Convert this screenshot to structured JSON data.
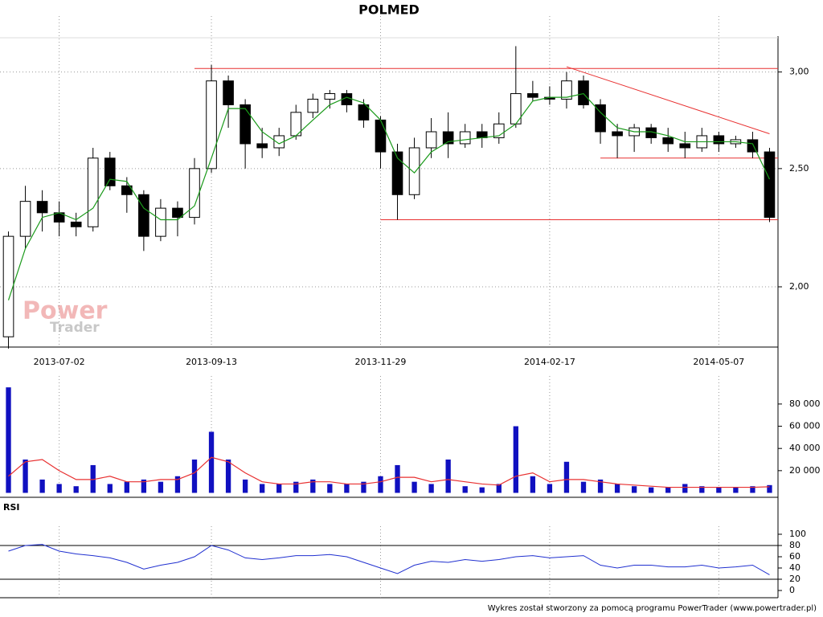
{
  "chart_data": [
    {
      "type": "candlestick",
      "title": "POLMED",
      "log": true,
      "categories": [
        null,
        null,
        null,
        "2013-07-02",
        null,
        null,
        null,
        null,
        null,
        null,
        null,
        null,
        "2013-09-13",
        null,
        null,
        null,
        null,
        null,
        null,
        null,
        null,
        null,
        "2013-11-29",
        null,
        null,
        null,
        null,
        null,
        null,
        null,
        null,
        null,
        "2014-02-17",
        null,
        null,
        null,
        null,
        null,
        null,
        null,
        null,
        null,
        "2014-05-07",
        null,
        null,
        null
      ],
      "open": [
        1.82,
        2.2,
        2.35,
        2.3,
        2.26,
        2.24,
        2.55,
        2.42,
        2.38,
        2.2,
        2.32,
        2.28,
        2.5,
        2.95,
        2.82,
        2.62,
        2.6,
        2.66,
        2.78,
        2.85,
        2.88,
        2.82,
        2.74,
        2.58,
        2.38,
        2.6,
        2.68,
        2.62,
        2.68,
        2.65,
        2.72,
        2.88,
        2.86,
        2.85,
        2.95,
        2.82,
        2.68,
        2.66,
        2.7,
        2.65,
        2.62,
        2.6,
        2.66,
        2.62,
        2.64,
        2.58
      ],
      "high": [
        2.22,
        2.42,
        2.4,
        2.35,
        2.3,
        2.6,
        2.58,
        2.46,
        2.4,
        2.36,
        2.35,
        2.55,
        3.04,
        2.98,
        2.85,
        2.7,
        2.7,
        2.82,
        2.88,
        2.9,
        2.9,
        2.85,
        2.76,
        2.62,
        2.65,
        2.75,
        2.78,
        2.72,
        2.72,
        2.78,
        3.15,
        2.95,
        2.92,
        3.0,
        2.98,
        2.85,
        2.72,
        2.72,
        2.72,
        2.7,
        2.68,
        2.7,
        2.68,
        2.66,
        2.68,
        2.6
      ],
      "low": [
        1.78,
        2.15,
        2.22,
        2.2,
        2.2,
        2.22,
        2.4,
        2.3,
        2.14,
        2.18,
        2.2,
        2.25,
        2.48,
        2.7,
        2.5,
        2.55,
        2.56,
        2.64,
        2.75,
        2.8,
        2.78,
        2.7,
        2.5,
        2.27,
        2.36,
        2.55,
        2.55,
        2.6,
        2.6,
        2.62,
        2.7,
        2.84,
        2.82,
        2.8,
        2.8,
        2.62,
        2.55,
        2.58,
        2.62,
        2.58,
        2.55,
        2.58,
        2.58,
        2.6,
        2.55,
        2.26
      ],
      "close": [
        2.2,
        2.35,
        2.3,
        2.26,
        2.24,
        2.55,
        2.42,
        2.38,
        2.2,
        2.32,
        2.28,
        2.5,
        2.95,
        2.82,
        2.62,
        2.6,
        2.66,
        2.78,
        2.85,
        2.88,
        2.82,
        2.74,
        2.58,
        2.38,
        2.6,
        2.68,
        2.62,
        2.68,
        2.65,
        2.72,
        2.88,
        2.86,
        2.85,
        2.95,
        2.82,
        2.68,
        2.66,
        2.7,
        2.65,
        2.62,
        2.6,
        2.66,
        2.62,
        2.64,
        2.58,
        2.28
      ],
      "ma": {
        "color": "#1a9a1a",
        "values": [
          1.95,
          2.15,
          2.28,
          2.3,
          2.27,
          2.32,
          2.45,
          2.44,
          2.32,
          2.27,
          2.27,
          2.33,
          2.55,
          2.8,
          2.8,
          2.68,
          2.62,
          2.66,
          2.74,
          2.82,
          2.86,
          2.83,
          2.74,
          2.55,
          2.48,
          2.58,
          2.63,
          2.64,
          2.65,
          2.66,
          2.72,
          2.84,
          2.86,
          2.86,
          2.88,
          2.78,
          2.7,
          2.68,
          2.68,
          2.66,
          2.63,
          2.63,
          2.63,
          2.63,
          2.62,
          2.45
        ]
      },
      "levels": [
        {
          "value": 3.02,
          "start": 11
        },
        {
          "value": 2.55,
          "start": 35
        },
        {
          "value": 2.27,
          "start": 22
        }
      ],
      "trendline": {
        "from": [
          33,
          3.03
        ],
        "to": [
          45,
          2.67
        ]
      },
      "line_color": "#e83030",
      "ylim": [
        1.785,
        3.21
      ],
      "yticks": [
        {
          "value": 2,
          "label": "2,00"
        },
        {
          "value": 2.5,
          "label": "2,50"
        },
        {
          "value": 3,
          "label": "3,00"
        }
      ],
      "grid": true
    },
    {
      "type": "bar",
      "color": "#1010c0",
      "values": [
        95000,
        30000,
        12000,
        8000,
        6000,
        25000,
        8000,
        10000,
        12000,
        10000,
        15000,
        30000,
        55000,
        30000,
        12000,
        8000,
        8000,
        10000,
        12000,
        8000,
        8000,
        10000,
        15000,
        25000,
        10000,
        8000,
        30000,
        6000,
        5000,
        8000,
        60000,
        15000,
        8000,
        28000,
        10000,
        12000,
        8000,
        6000,
        5000,
        5000,
        8000,
        6000,
        5000,
        5000,
        6000,
        7000
      ],
      "average": {
        "color": "#e83030",
        "values": [
          15000,
          28000,
          30000,
          20000,
          12000,
          12000,
          15000,
          10000,
          10000,
          12000,
          12000,
          18000,
          32000,
          28000,
          18000,
          10000,
          8000,
          8000,
          10000,
          10000,
          8000,
          8000,
          10000,
          14000,
          14000,
          10000,
          12000,
          10000,
          8000,
          7000,
          15000,
          18000,
          10000,
          12000,
          12000,
          10000,
          8000,
          7000,
          6000,
          5000,
          5000,
          5000,
          5000,
          5000,
          5000,
          5500
        ]
      },
      "ylim": [
        0,
        98000
      ],
      "yticks": [
        {
          "value": 20000,
          "label": "20 000"
        },
        {
          "value": 40000,
          "label": "40 000"
        },
        {
          "value": 60000,
          "label": "60 000"
        },
        {
          "value": 80000,
          "label": "80 000"
        }
      ]
    },
    {
      "type": "line",
      "title": "RSI",
      "color": "#2030d0",
      "values": [
        70,
        80,
        82,
        70,
        65,
        62,
        58,
        50,
        38,
        45,
        50,
        60,
        80,
        72,
        58,
        55,
        58,
        62,
        62,
        64,
        60,
        50,
        40,
        30,
        45,
        52,
        50,
        55,
        52,
        55,
        60,
        62,
        58,
        60,
        62,
        45,
        40,
        45,
        45,
        42,
        42,
        45,
        40,
        42,
        45,
        28
      ],
      "levels": [
        20,
        80
      ],
      "ylim": [
        0,
        100
      ],
      "yticks": [
        0,
        20,
        40,
        60,
        80,
        100
      ]
    }
  ],
  "watermark": [
    "Power",
    "Trader"
  ],
  "footer": "Wykres został stworzony za pomocą programu PowerTrader (www.powertrader.pl)"
}
